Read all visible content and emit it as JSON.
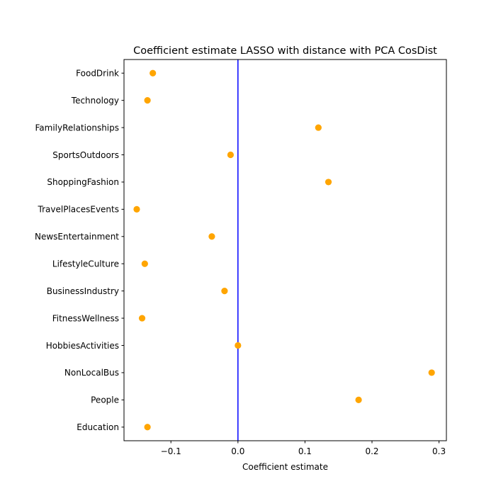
{
  "chart_data": {
    "type": "scatter",
    "title": "Coefficient estimate LASSO  with distance with PCA CosDist",
    "xlabel": "Coefficient estimate",
    "ylabel": "",
    "xlim": [
      -0.17,
      0.311
    ],
    "xticks": [
      {
        "value": -0.1,
        "label": "−0.1"
      },
      {
        "value": 0.0,
        "label": "0.0"
      },
      {
        "value": 0.1,
        "label": "0.1"
      },
      {
        "value": 0.2,
        "label": "0.2"
      },
      {
        "value": 0.3,
        "label": "0.3"
      }
    ],
    "grid": false,
    "reference_line": {
      "x": 0,
      "color": "#0000ff"
    },
    "marker_color": "#ffa500",
    "categories": [
      "FoodDrink",
      "Technology",
      "FamilyRelationships",
      "SportsOutdoors",
      "ShoppingFashion",
      "TravelPlacesEvents",
      "NewsEntertainment",
      "LifestyleCulture",
      "BusinessIndustry",
      "FitnessWellness",
      "HobbiesActivities",
      "NonLocalBus",
      "People",
      "Education"
    ],
    "values": [
      -0.127,
      -0.135,
      0.12,
      -0.011,
      0.135,
      -0.151,
      -0.039,
      -0.139,
      -0.02,
      -0.143,
      0.0,
      0.289,
      0.18,
      -0.135
    ]
  }
}
